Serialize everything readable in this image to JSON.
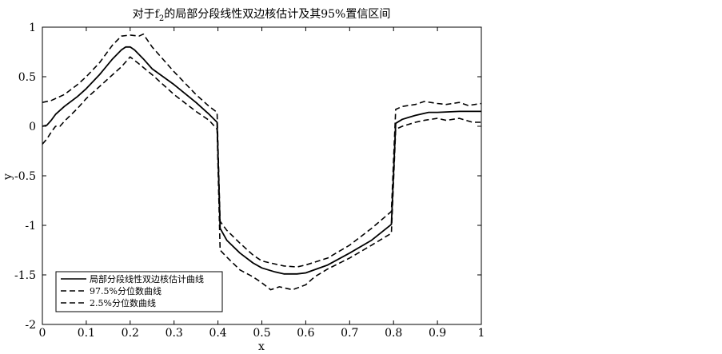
{
  "chart_data": {
    "type": "line",
    "title": {
      "prefix": "对于f",
      "subscript": "2",
      "suffix": "的局部分段线性双边核估计及其95%置信区间"
    },
    "xlabel": "x",
    "ylabel": "y",
    "xlim": [
      0,
      1
    ],
    "ylim": [
      -2,
      1
    ],
    "x_ticks": [
      0,
      0.1,
      0.2,
      0.3,
      0.4,
      0.5,
      0.6,
      0.7,
      0.8,
      0.9,
      1
    ],
    "x_tick_labels": [
      "0",
      "0.1",
      "0.2",
      "0.3",
      "0.4",
      "0.5",
      "0.6",
      "0.7",
      "0.8",
      "0.9",
      "1"
    ],
    "y_ticks": [
      1,
      0.5,
      0,
      -0.5,
      -1,
      -1.5,
      -2
    ],
    "y_tick_labels": [
      "1",
      "0.5",
      "0",
      "-0.5",
      "-1",
      "-1.5",
      "-2"
    ],
    "grid": false,
    "legend_position": "bottom-left",
    "series": [
      {
        "name": "局部分段线性双边核估计曲线",
        "style": "solid",
        "color": "#000000",
        "points": [
          [
            0,
            0
          ],
          [
            0.01,
            0.01
          ],
          [
            0.02,
            0.06
          ],
          [
            0.03,
            0.12
          ],
          [
            0.05,
            0.2
          ],
          [
            0.08,
            0.3
          ],
          [
            0.1,
            0.38
          ],
          [
            0.13,
            0.52
          ],
          [
            0.16,
            0.68
          ],
          [
            0.18,
            0.77
          ],
          [
            0.19,
            0.8
          ],
          [
            0.2,
            0.8
          ],
          [
            0.21,
            0.77
          ],
          [
            0.23,
            0.68
          ],
          [
            0.25,
            0.58
          ],
          [
            0.3,
            0.42
          ],
          [
            0.35,
            0.24
          ],
          [
            0.38,
            0.12
          ],
          [
            0.398,
            0.04
          ],
          [
            0.405,
            -1.03
          ],
          [
            0.42,
            -1.15
          ],
          [
            0.45,
            -1.28
          ],
          [
            0.48,
            -1.38
          ],
          [
            0.5,
            -1.43
          ],
          [
            0.53,
            -1.47
          ],
          [
            0.55,
            -1.49
          ],
          [
            0.58,
            -1.49
          ],
          [
            0.6,
            -1.48
          ],
          [
            0.65,
            -1.4
          ],
          [
            0.7,
            -1.28
          ],
          [
            0.75,
            -1.15
          ],
          [
            0.795,
            -0.99
          ],
          [
            0.805,
            0.03
          ],
          [
            0.82,
            0.07
          ],
          [
            0.85,
            0.11
          ],
          [
            0.88,
            0.14
          ],
          [
            0.9,
            0.14
          ],
          [
            0.95,
            0.15
          ],
          [
            1,
            0.15
          ]
        ]
      },
      {
        "name": "97.5%分位数曲线",
        "style": "dashed",
        "color": "#000000",
        "points": [
          [
            0,
            0.24
          ],
          [
            0.02,
            0.26
          ],
          [
            0.05,
            0.32
          ],
          [
            0.08,
            0.42
          ],
          [
            0.1,
            0.5
          ],
          [
            0.13,
            0.64
          ],
          [
            0.16,
            0.82
          ],
          [
            0.18,
            0.91
          ],
          [
            0.2,
            0.92
          ],
          [
            0.22,
            0.91
          ],
          [
            0.23,
            0.93
          ],
          [
            0.25,
            0.8
          ],
          [
            0.3,
            0.55
          ],
          [
            0.35,
            0.32
          ],
          [
            0.38,
            0.2
          ],
          [
            0.398,
            0.14
          ],
          [
            0.405,
            -0.96
          ],
          [
            0.42,
            -1.05
          ],
          [
            0.45,
            -1.18
          ],
          [
            0.48,
            -1.3
          ],
          [
            0.5,
            -1.36
          ],
          [
            0.53,
            -1.39
          ],
          [
            0.55,
            -1.41
          ],
          [
            0.58,
            -1.42
          ],
          [
            0.6,
            -1.4
          ],
          [
            0.65,
            -1.33
          ],
          [
            0.7,
            -1.2
          ],
          [
            0.75,
            -1.03
          ],
          [
            0.795,
            -0.86
          ],
          [
            0.805,
            0.17
          ],
          [
            0.82,
            0.2
          ],
          [
            0.85,
            0.22
          ],
          [
            0.87,
            0.25
          ],
          [
            0.9,
            0.23
          ],
          [
            0.92,
            0.22
          ],
          [
            0.95,
            0.24
          ],
          [
            0.97,
            0.21
          ],
          [
            1,
            0.23
          ]
        ]
      },
      {
        "name": "2.5%分位数曲线",
        "style": "dashed",
        "color": "#000000",
        "points": [
          [
            0,
            -0.18
          ],
          [
            0.01,
            -0.13
          ],
          [
            0.02,
            -0.06
          ],
          [
            0.03,
            0.0
          ],
          [
            0.04,
            0.0
          ],
          [
            0.05,
            0.05
          ],
          [
            0.08,
            0.18
          ],
          [
            0.1,
            0.28
          ],
          [
            0.13,
            0.4
          ],
          [
            0.16,
            0.52
          ],
          [
            0.18,
            0.6
          ],
          [
            0.2,
            0.7
          ],
          [
            0.22,
            0.63
          ],
          [
            0.25,
            0.52
          ],
          [
            0.3,
            0.32
          ],
          [
            0.35,
            0.15
          ],
          [
            0.38,
            0.06
          ],
          [
            0.398,
            -0.03
          ],
          [
            0.405,
            -1.25
          ],
          [
            0.42,
            -1.32
          ],
          [
            0.45,
            -1.45
          ],
          [
            0.48,
            -1.52
          ],
          [
            0.5,
            -1.58
          ],
          [
            0.52,
            -1.65
          ],
          [
            0.54,
            -1.62
          ],
          [
            0.57,
            -1.65
          ],
          [
            0.6,
            -1.6
          ],
          [
            0.62,
            -1.52
          ],
          [
            0.65,
            -1.44
          ],
          [
            0.7,
            -1.33
          ],
          [
            0.75,
            -1.2
          ],
          [
            0.795,
            -1.08
          ],
          [
            0.805,
            -0.03
          ],
          [
            0.82,
            0.0
          ],
          [
            0.85,
            0.04
          ],
          [
            0.87,
            0.06
          ],
          [
            0.9,
            0.08
          ],
          [
            0.92,
            0.06
          ],
          [
            0.95,
            0.08
          ],
          [
            0.98,
            0.04
          ],
          [
            1,
            0.04
          ]
        ]
      }
    ]
  }
}
